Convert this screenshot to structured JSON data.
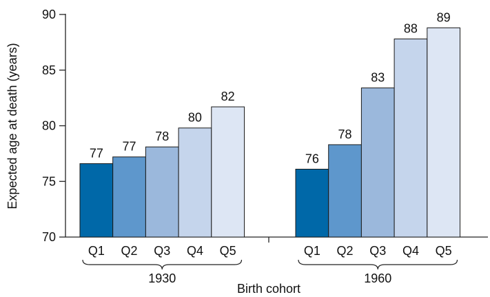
{
  "chart_data": {
    "type": "bar",
    "title": "",
    "xlabel": "Birth cohort",
    "ylabel": "Expected age at death (years)",
    "ylim": [
      70,
      90
    ],
    "yticks": [
      70,
      75,
      80,
      85,
      90
    ],
    "grid": false,
    "legend": "none",
    "categories": [
      "Q1",
      "Q2",
      "Q3",
      "Q4",
      "Q5"
    ],
    "groups": [
      {
        "label": "1930",
        "values": [
          76.6,
          77.2,
          78.1,
          79.8,
          81.7
        ],
        "labels": [
          "77",
          "77",
          "78",
          "80",
          "82"
        ]
      },
      {
        "label": "1960",
        "values": [
          76.1,
          78.3,
          83.4,
          87.8,
          88.8
        ],
        "labels": [
          "76",
          "78",
          "83",
          "88",
          "89"
        ]
      }
    ],
    "colors": [
      "#0068a8",
      "#5e97cc",
      "#9bb8dc",
      "#c5d5ec",
      "#dde6f4"
    ]
  }
}
